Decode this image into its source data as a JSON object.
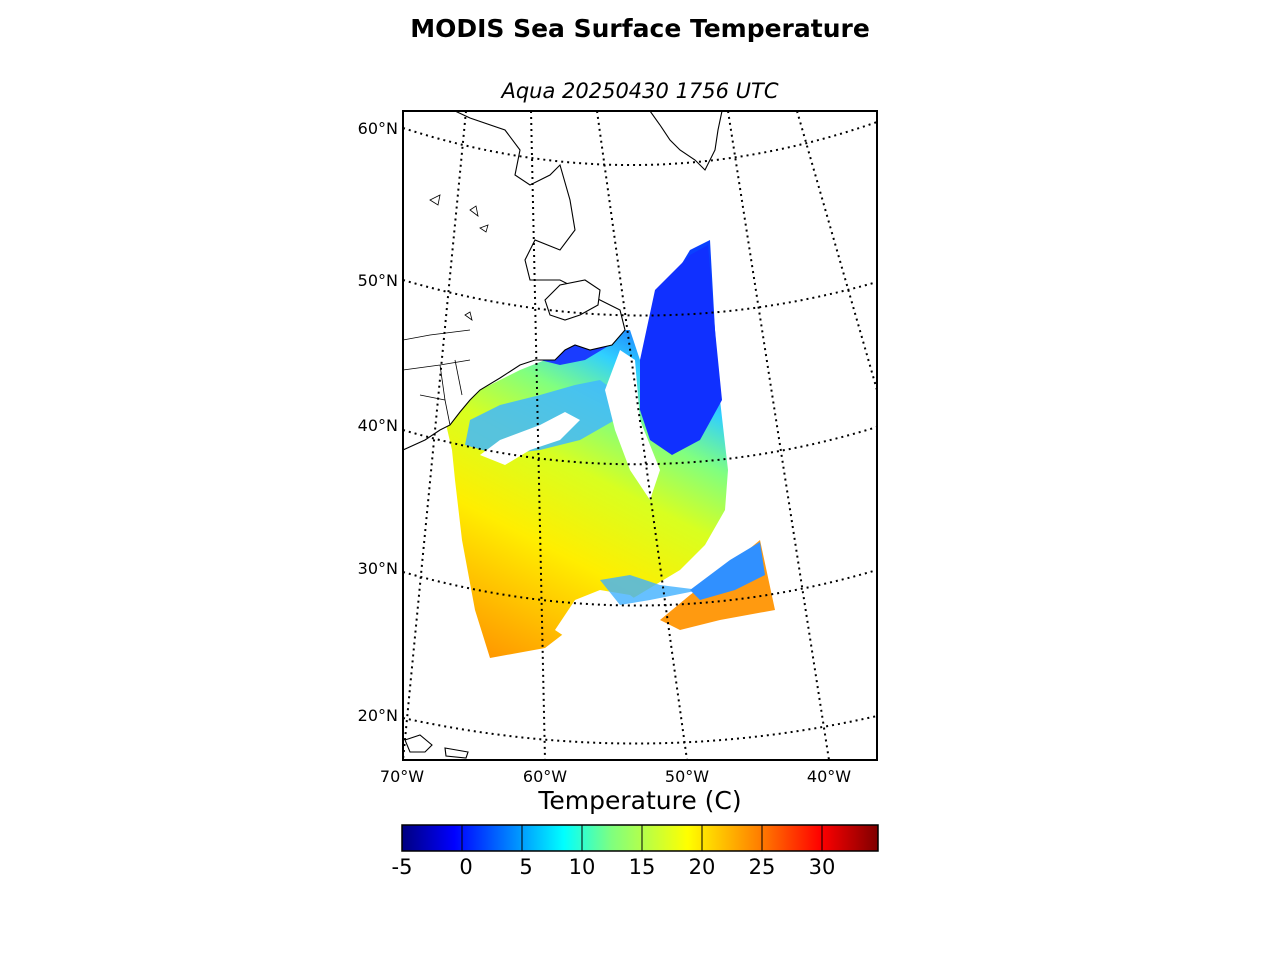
{
  "title": "MODIS Sea Surface Temperature",
  "subtitle": "Aqua 20250430 1756 UTC",
  "map": {
    "projection": "conic",
    "lat_labels": [
      "60°N",
      "50°N",
      "40°N",
      "30°N",
      "20°N"
    ],
    "lon_labels": [
      "70°W",
      "60°W",
      "50°W",
      "40°W"
    ],
    "graticule_style": "dotted",
    "land_color": "#ffffff",
    "no_data_color": "#ffffff"
  },
  "colorbar": {
    "title": "Temperature (C)",
    "colormap": "jet",
    "range": [
      -5,
      35
    ],
    "tick_labels": [
      "-5",
      "0",
      "5",
      "10",
      "15",
      "20",
      "25",
      "30"
    ],
    "colors": [
      "#00007f",
      "#0000ff",
      "#007fff",
      "#00ffff",
      "#7fff7f",
      "#ffff00",
      "#ff7f00",
      "#ff0000",
      "#7f0000"
    ]
  }
}
